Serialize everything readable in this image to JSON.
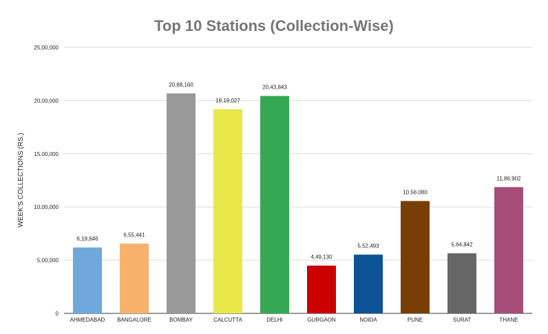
{
  "chart_data": {
    "type": "bar",
    "title": "Top 10 Stations (Collection-Wise)",
    "xlabel": "",
    "ylabel": "WEEK'S COLLECTIONS (RS.)",
    "ylim": [
      0,
      2500000
    ],
    "grid": true,
    "legend": "none",
    "y_ticks": [
      {
        "value": 0,
        "label": "0"
      },
      {
        "value": 500000,
        "label": "5,00,000"
      },
      {
        "value": 1000000,
        "label": "10,00,000"
      },
      {
        "value": 1500000,
        "label": "15,00,000"
      },
      {
        "value": 2000000,
        "label": "20,00,000"
      },
      {
        "value": 2500000,
        "label": "25,00,000"
      }
    ],
    "categories": [
      "AHMEDABAD",
      "BANGALORE",
      "BOMBAY",
      "CALCUTTA",
      "DELHI",
      "GURGAON",
      "NOIDA",
      "PUNE",
      "SURAT",
      "THANE"
    ],
    "values": [
      619646,
      655441,
      2068160,
      1919027,
      2043843,
      449130,
      552493,
      1056080,
      564842,
      1186902
    ],
    "value_labels": [
      "6,19,646",
      "6,55,441",
      "20,68,160",
      "19,19,027",
      "20,43,843",
      "4,49,130",
      "5,52,493",
      "10,56,080",
      "5,64,842",
      "11,86,902"
    ],
    "colors": [
      "#6fa8dc",
      "#f6b26b",
      "#999999",
      "#e8e84a",
      "#34a853",
      "#cc0000",
      "#0b5394",
      "#783f04",
      "#666666",
      "#a64d79"
    ]
  }
}
